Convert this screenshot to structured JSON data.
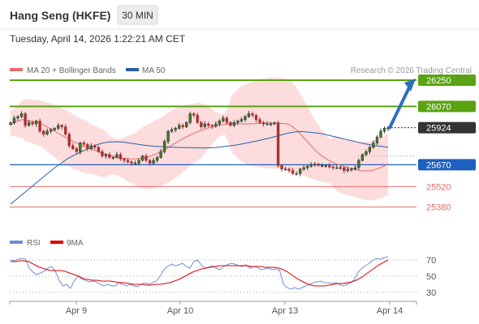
{
  "header": {
    "title": "Hang Seng (HKFE)",
    "timeframe": "30 MIN",
    "datetime": "Tuesday, April 14, 2026 1:22:21 AM CET"
  },
  "legend": {
    "ma20_label": "MA 20 + Bollinger Bands",
    "ma50_label": "MA 50",
    "credit": "Research © 2026 Trading Central",
    "rsi_label": "RSI",
    "rsi_ma_label": "9MA"
  },
  "colors": {
    "candle_up": "#3a3a3a",
    "candle_down": "#a83232",
    "ma20": "#e86a6a",
    "bollinger_fill": "#fbd6d6",
    "ma50": "#2a5fa8",
    "support": "#1f5fc0",
    "resistance": "#5aa312",
    "minor_level": "#e86a6a",
    "current_price": "#333333",
    "rsi": "#6b8fd8",
    "rsi_ma": "#e10000",
    "arrow": "#2e6fc0"
  },
  "chart_data": [
    {
      "type": "candlestick",
      "title": "Hang Seng (HKFE)",
      "x_tick_labels": [
        "Apr 9",
        "Apr 10",
        "Apr 13",
        "Apr 14"
      ],
      "ylim": [
        25250,
        26300
      ],
      "levels": [
        {
          "value": 26250,
          "label": "26250",
          "kind": "resistance"
        },
        {
          "value": 26070,
          "label": "26070",
          "kind": "resistance"
        },
        {
          "value": 25924,
          "label": "25924",
          "kind": "current"
        },
        {
          "value": 25670,
          "label": "25670",
          "kind": "support"
        },
        {
          "value": 25520,
          "label": "25520",
          "kind": "minor"
        },
        {
          "value": 25380,
          "label": "25380",
          "kind": "minor"
        }
      ],
      "close": [
        25958,
        25990,
        26000,
        26020,
        25940,
        25960,
        25950,
        25970,
        25900,
        25880,
        25900,
        25910,
        25920,
        25940,
        25930,
        25880,
        25800,
        25780,
        25760,
        25820,
        25810,
        25780,
        25800,
        25790,
        25760,
        25730,
        25740,
        25720,
        25720,
        25740,
        25710,
        25700,
        25690,
        25680,
        25680,
        25700,
        25730,
        25700,
        25680,
        25700,
        25720,
        25760,
        25830,
        25900,
        25910,
        25920,
        25940,
        25930,
        25960,
        26020,
        26010,
        25960,
        25930,
        25950,
        25940,
        25935,
        25950,
        25970,
        25990,
        25960,
        25940,
        25960,
        25970,
        25980,
        26000,
        26020,
        26010,
        25980,
        25960,
        25950,
        25950,
        25950,
        25958,
        25664,
        25640,
        25640,
        25630,
        25610,
        25610,
        25640,
        25650,
        25660,
        25670,
        25675,
        25665,
        25665,
        25665,
        25655,
        25650,
        25650,
        25650,
        25630,
        25640,
        25640,
        25650,
        25700,
        25740,
        25760,
        25790,
        25820,
        25860,
        25900,
        25920,
        25924
      ],
      "ma20": [
        25950,
        25960,
        25970,
        25980,
        25975,
        25970,
        25965,
        25960,
        25950,
        25935,
        25920,
        25905,
        25890,
        25875,
        25860,
        25845,
        25830,
        25818,
        25805,
        25795,
        25785,
        25775,
        25765,
        25755,
        25745,
        25738,
        25730,
        25724,
        25718,
        25715,
        25712,
        25710,
        25710,
        25712,
        25716,
        25722,
        25730,
        25740,
        25752,
        25765,
        25780,
        25796,
        25812,
        25828,
        25844,
        25858,
        25872,
        25884,
        25896,
        25906,
        25916,
        25924,
        25932,
        25938,
        25944,
        25948,
        25950,
        25952,
        25952,
        25951,
        25950,
        25950,
        25951,
        25952,
        25954,
        25955,
        25956,
        25956,
        25955,
        25954,
        25953,
        25950,
        25940,
        25920,
        25895,
        25866,
        25836,
        25806,
        25778,
        25752,
        25730,
        25712,
        25697,
        25684,
        25673,
        25664,
        25656,
        25649,
        25642,
        25636,
        25630,
        25628,
        25628,
        25632,
        25640,
        25650,
        25662,
        25676
      ],
      "ma50": [
        25400,
        25435,
        25470,
        25505,
        25540,
        25575,
        25610,
        25645,
        25675,
        25705,
        25730,
        25750,
        25770,
        25790,
        25808,
        25820,
        25826,
        25828,
        25826,
        25820,
        25814,
        25808,
        25802,
        25798,
        25795,
        25793,
        25790,
        25789,
        25788,
        25787,
        25786,
        25785,
        25786,
        25788,
        25792,
        25797,
        25803,
        25810,
        25818,
        25826,
        25835,
        25845,
        25855,
        25866,
        25878,
        25888,
        25895,
        25898,
        25894,
        25890,
        25885,
        25876,
        25866,
        25856,
        25846,
        25836,
        25826,
        25816,
        25808,
        25800,
        25796,
        25790
      ]
    },
    {
      "type": "line",
      "title": "RSI",
      "ylim": [
        20,
        80
      ],
      "y_tick_labels": [
        "70",
        "50",
        "30"
      ],
      "series": [
        {
          "name": "RSI",
          "values": [
            70,
            69,
            71,
            72,
            71,
            60,
            55,
            52,
            54,
            56,
            60,
            62,
            56,
            45,
            38,
            40,
            35,
            44,
            50,
            47,
            45,
            43,
            44,
            43,
            40,
            38,
            40,
            38,
            38,
            42,
            40,
            38,
            40,
            38,
            37,
            40,
            42,
            40,
            42,
            44,
            50,
            58,
            62,
            65,
            63,
            64,
            66,
            62,
            60,
            68,
            70,
            64,
            60,
            61,
            63,
            60,
            58,
            62,
            64,
            66,
            65,
            63,
            62,
            64,
            60,
            62,
            61,
            58,
            59,
            60,
            58,
            59,
            57,
            40,
            36,
            34,
            36,
            34,
            36,
            38,
            40,
            42,
            43,
            44,
            42,
            42,
            41,
            42,
            40,
            38,
            40,
            42,
            46,
            55,
            60,
            63,
            66,
            70,
            72,
            71,
            73,
            74
          ]
        },
        {
          "name": "9MA",
          "values": [
            68,
            68,
            69,
            69,
            68,
            65,
            62,
            60,
            58,
            57,
            57,
            57,
            56,
            54,
            52,
            50,
            47,
            46,
            45,
            45,
            44,
            44,
            44,
            43,
            42,
            42,
            41,
            40,
            40,
            40,
            39,
            39,
            40,
            40,
            41,
            42,
            44,
            46,
            49,
            52,
            55,
            57,
            59,
            60,
            61,
            62,
            63,
            63,
            63,
            63,
            63,
            63,
            63,
            62,
            62,
            62,
            61,
            61,
            61,
            60,
            58,
            55,
            51,
            47,
            44,
            41,
            39,
            38,
            38,
            38,
            39,
            40,
            41,
            41,
            42,
            43,
            45,
            48,
            52,
            56,
            60,
            64,
            67,
            70
          ]
        }
      ]
    }
  ]
}
